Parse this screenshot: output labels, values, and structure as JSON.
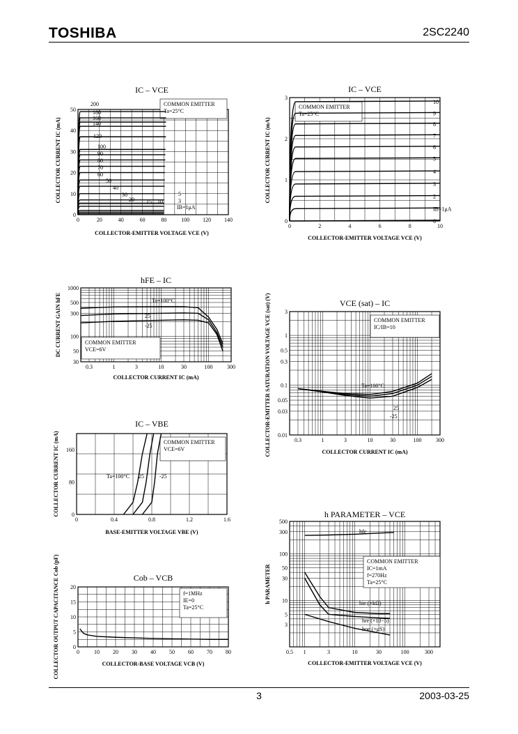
{
  "header": {
    "brand": "TOSHIBA",
    "part": "2SC2240"
  },
  "footer": {
    "page": "3",
    "date": "2003-03-25"
  },
  "chart_data": [
    {
      "id": "c1",
      "type": "line",
      "title": "IC – VCE",
      "xlabel": "COLLECTOR-EMITTER VOLTAGE  VCE  (V)",
      "ylabel": "COLLECTOR CURRENT  IC  (mA)",
      "xlim": [
        0,
        140
      ],
      "ylim": [
        0,
        50
      ],
      "xticks": [
        "0",
        "20",
        "40",
        "60",
        "80",
        "100",
        "120",
        "140"
      ],
      "yticks": [
        "0",
        "10",
        "20",
        "30",
        "40",
        "50"
      ],
      "legend": [
        "COMMON EMITTER",
        "Ta=25°C"
      ],
      "series": [
        {
          "name": "200",
          "level": 49
        },
        {
          "name": "180",
          "level": 46
        },
        {
          "name": "160",
          "level": 44
        },
        {
          "name": "140",
          "level": 42
        },
        {
          "name": "120",
          "level": 37
        },
        {
          "name": "100",
          "level": 31
        },
        {
          "name": "90",
          "level": 28.5
        },
        {
          "name": "80",
          "level": 26
        },
        {
          "name": "70",
          "level": 23
        },
        {
          "name": "60",
          "level": 20
        },
        {
          "name": "50",
          "level": 16.5
        },
        {
          "name": "40",
          "level": 13.5
        },
        {
          "name": "30",
          "level": 10
        },
        {
          "name": "20",
          "level": 7
        },
        {
          "name": "15",
          "level": 5.5
        },
        {
          "name": "10",
          "level": 4
        },
        {
          "name": "5",
          "level": 2
        },
        {
          "name": "3",
          "level": 1.2
        },
        {
          "name": "IB=1μA",
          "level": 0.5
        }
      ]
    },
    {
      "id": "c2",
      "type": "line",
      "title": "IC – VCE",
      "xlabel": "COLLECTOR-EMITTER VOLTAGE  VCE  (V)",
      "ylabel": "COLLECTOR CURRENT  IC  (mA)",
      "xlim": [
        0,
        10
      ],
      "ylim": [
        0,
        3
      ],
      "xticks": [
        "0",
        "2",
        "4",
        "6",
        "8",
        "10"
      ],
      "yticks": [
        "0",
        "1",
        "2",
        "3"
      ],
      "legend": [
        "COMMON EMITTER",
        "Ta=25°C"
      ],
      "series": [
        {
          "name": "10",
          "level": 2.9
        },
        {
          "name": "9",
          "level": 2.62
        },
        {
          "name": "8",
          "level": 2.36
        },
        {
          "name": "7",
          "level": 2.08
        },
        {
          "name": "6",
          "level": 1.8
        },
        {
          "name": "5",
          "level": 1.52
        },
        {
          "name": "4",
          "level": 1.2
        },
        {
          "name": "3",
          "level": 0.9
        },
        {
          "name": "2",
          "level": 0.6
        },
        {
          "name": "IB=1μA",
          "level": 0.3
        },
        {
          "name": "0",
          "level": 0
        }
      ]
    },
    {
      "id": "c3",
      "type": "line",
      "title": "hFE – IC",
      "xlabel": "COLLECTOR CURRENT  IC  (mA)",
      "ylabel": "DC CURRENT GAIN  hFE",
      "xscale": "log",
      "yscale": "log",
      "xlim": [
        0.2,
        300
      ],
      "ylim": [
        30,
        1000
      ],
      "xticks": [
        "0.3",
        "1",
        "3",
        "10",
        "30",
        "100",
        "300"
      ],
      "yticks": [
        "30",
        "50",
        "100",
        "300",
        "500",
        "1000"
      ],
      "legend": [
        "COMMON EMITTER",
        "VCE=6V"
      ],
      "series": [
        {
          "name": "Ta=100°C",
          "x": [
            0.2,
            1,
            10,
            30,
            60,
            100,
            150,
            200
          ],
          "y": [
            380,
            405,
            410,
            410,
            390,
            250,
            140,
            70
          ]
        },
        {
          "name": "25",
          "x": [
            0.2,
            1,
            10,
            30,
            60,
            100,
            150,
            200
          ],
          "y": [
            270,
            290,
            300,
            305,
            300,
            220,
            120,
            60
          ]
        },
        {
          "name": "-25",
          "x": [
            0.2,
            1,
            10,
            30,
            60,
            100,
            150,
            200
          ],
          "y": [
            190,
            205,
            215,
            220,
            215,
            190,
            110,
            50
          ]
        }
      ]
    },
    {
      "id": "c4",
      "type": "line",
      "title": "VCE (sat) – IC",
      "xlabel": "COLLECTOR CURRENT  IC  (mA)",
      "ylabel": "COLLECTOR-EMITTER SATURATION VOLTAGE  VCE (sat)  (V)",
      "xscale": "log",
      "yscale": "log",
      "xlim": [
        0.2,
        300
      ],
      "ylim": [
        0.01,
        3
      ],
      "xticks": [
        "0.3",
        "1",
        "3",
        "10",
        "30",
        "100",
        "300"
      ],
      "yticks": [
        "0.01",
        "0.03",
        "0.05",
        "0.1",
        "0.3",
        "0.5",
        "1",
        "3"
      ],
      "legend": [
        "COMMON EMITTER",
        "IC/IB=10"
      ],
      "series": [
        {
          "name": "Ta=100°C",
          "x": [
            0.3,
            1,
            3,
            10,
            30,
            100,
            200
          ],
          "y": [
            0.085,
            0.075,
            0.068,
            0.065,
            0.075,
            0.11,
            0.17
          ]
        },
        {
          "name": "25",
          "x": [
            0.3,
            1,
            3,
            10,
            30,
            100,
            200
          ],
          "y": [
            0.085,
            0.075,
            0.065,
            0.06,
            0.068,
            0.1,
            0.15
          ]
        },
        {
          "name": "-25",
          "x": [
            0.3,
            1,
            3,
            10,
            30,
            100,
            200
          ],
          "y": [
            0.085,
            0.073,
            0.062,
            0.055,
            0.06,
            0.09,
            0.13
          ]
        }
      ]
    },
    {
      "id": "c5",
      "type": "line",
      "title": "IC – VBE",
      "xlabel": "BASE-EMITTER VOLTAGE  VBE  (V)",
      "ylabel": "COLLECTOR CURRENT  IC  (mA)",
      "xlim": [
        0,
        1.6
      ],
      "ylim": [
        0,
        200
      ],
      "xticks": [
        "0",
        "0.4",
        "0.8",
        "1.2",
        "1.6"
      ],
      "yticks": [
        "0",
        "80",
        "160"
      ],
      "legend": [
        "COMMON EMITTER",
        "VCE=6V"
      ],
      "series": [
        {
          "name": "Ta=100°C",
          "x": [
            0.5,
            0.6,
            0.65,
            0.7,
            0.75
          ],
          "y": [
            0,
            30,
            80,
            150,
            200
          ]
        },
        {
          "name": "25",
          "x": [
            0.6,
            0.7,
            0.74,
            0.78,
            0.82
          ],
          "y": [
            0,
            30,
            80,
            150,
            200
          ]
        },
        {
          "name": "-25",
          "x": [
            0.7,
            0.8,
            0.83,
            0.86,
            0.9
          ],
          "y": [
            0,
            30,
            80,
            150,
            200
          ]
        }
      ]
    },
    {
      "id": "c6",
      "type": "line",
      "title": "h PARAMETER – VCE",
      "xlabel": "COLLECTOR-EMITTER VOLTAGE  VCE  (V)",
      "ylabel": "h PARAMETER",
      "xscale": "log",
      "yscale": "log",
      "xlim": [
        0.5,
        500
      ],
      "ylim": [
        1,
        500
      ],
      "xticks": [
        "0.5",
        "1",
        "3",
        "10",
        "30",
        "100",
        "300"
      ],
      "yticks": [
        "3",
        "5",
        "10",
        "30",
        "50",
        "100",
        "300",
        "500"
      ],
      "legend": [
        "COMMON EMITTER",
        "IC=1mA",
        "f=270Hz",
        "Ta=25°C"
      ],
      "series": [
        {
          "name": "hfe",
          "x": [
            1,
            3,
            10,
            30,
            60
          ],
          "y": [
            250,
            255,
            265,
            280,
            290
          ]
        },
        {
          "name": "hie (×kΩ)",
          "x": [
            1,
            2,
            3,
            10,
            30,
            50
          ],
          "y": [
            40,
            12,
            7,
            5.5,
            5.2,
            5.2
          ]
        },
        {
          "name": "hre (×10−5)",
          "x": [
            1,
            2,
            3,
            10,
            30,
            50
          ],
          "y": [
            30,
            8,
            5,
            4.5,
            4.2,
            4.1
          ]
        },
        {
          "name": "hoe (×μS)",
          "x": [
            1,
            3,
            10,
            30,
            50
          ],
          "y": [
            5,
            3.5,
            2.5,
            2,
            1.8
          ]
        }
      ]
    },
    {
      "id": "c7",
      "type": "line",
      "title": "Cob – VCB",
      "xlabel": "COLLECTOR-BASE VOLTAGE  VCB  (V)",
      "ylabel": "COLLECTOR OUTPUT CAPACITANCE  Cob  (pF)",
      "xlim": [
        0,
        80
      ],
      "ylim": [
        0,
        20
      ],
      "xticks": [
        "0",
        "10",
        "20",
        "30",
        "40",
        "50",
        "60",
        "70",
        "80"
      ],
      "yticks": [
        "0",
        "5",
        "10",
        "15",
        "20"
      ],
      "legend": [
        "f=1MHz",
        "IE=0",
        "Ta=25°C"
      ],
      "series": [
        {
          "name": "Cob",
          "x": [
            1,
            3,
            5,
            10,
            20,
            30,
            40,
            50,
            60,
            70,
            80
          ],
          "y": [
            6,
            4.5,
            4,
            3.5,
            3.2,
            3,
            2.8,
            2.7,
            2.6,
            2.5,
            2.5
          ]
        }
      ]
    }
  ]
}
